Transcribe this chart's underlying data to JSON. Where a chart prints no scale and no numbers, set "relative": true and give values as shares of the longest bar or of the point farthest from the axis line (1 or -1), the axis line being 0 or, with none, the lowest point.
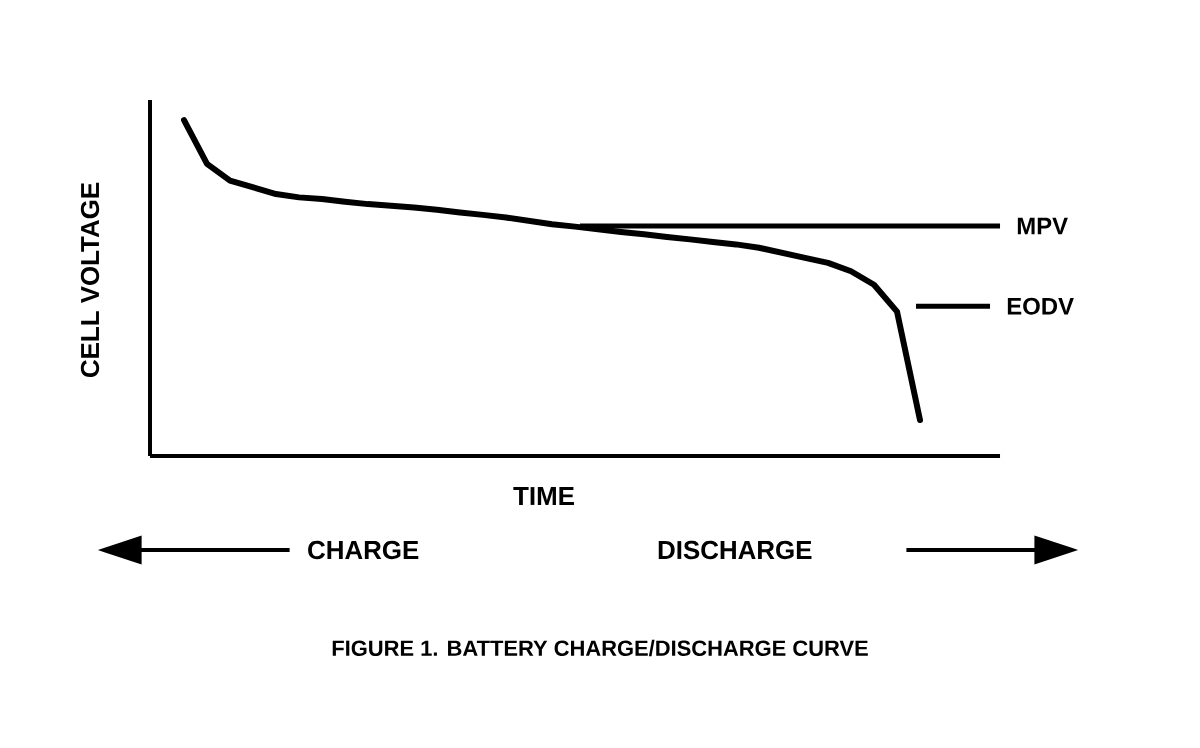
{
  "chart_data": {
    "type": "line",
    "title": "FIGURE 1.  BATTERY CHARGE/DISCHARGE CURVE",
    "xlabel": "TIME",
    "ylabel": "CELL VOLTAGE",
    "relative": true,
    "color": "#000000",
    "line_style": "solid",
    "categories": [
      null,
      null,
      null,
      null,
      null,
      null,
      null,
      null,
      null,
      null,
      null,
      null,
      null,
      null,
      null,
      null,
      null,
      null,
      null,
      null,
      null,
      null,
      null,
      null,
      null,
      null,
      null,
      null,
      null,
      null,
      null,
      null,
      null
    ],
    "values": [
      1.0,
      0.87,
      0.82,
      0.8,
      0.78,
      0.77,
      0.765,
      0.757,
      0.75,
      0.745,
      0.74,
      0.733,
      0.725,
      0.718,
      0.71,
      0.7,
      0.69,
      0.683,
      0.675,
      0.667,
      0.66,
      0.652,
      0.645,
      0.637,
      0.63,
      0.62,
      0.605,
      0.59,
      0.575,
      0.55,
      0.51,
      0.43,
      0.107
    ],
    "ref_lines": [
      {
        "axis": "y",
        "value": 0.685,
        "label": "MPV"
      },
      {
        "axis": "y",
        "value": 0.446,
        "label": "EODV"
      }
    ],
    "annotations": [
      "CHARGE",
      "DISCHARGE"
    ]
  }
}
